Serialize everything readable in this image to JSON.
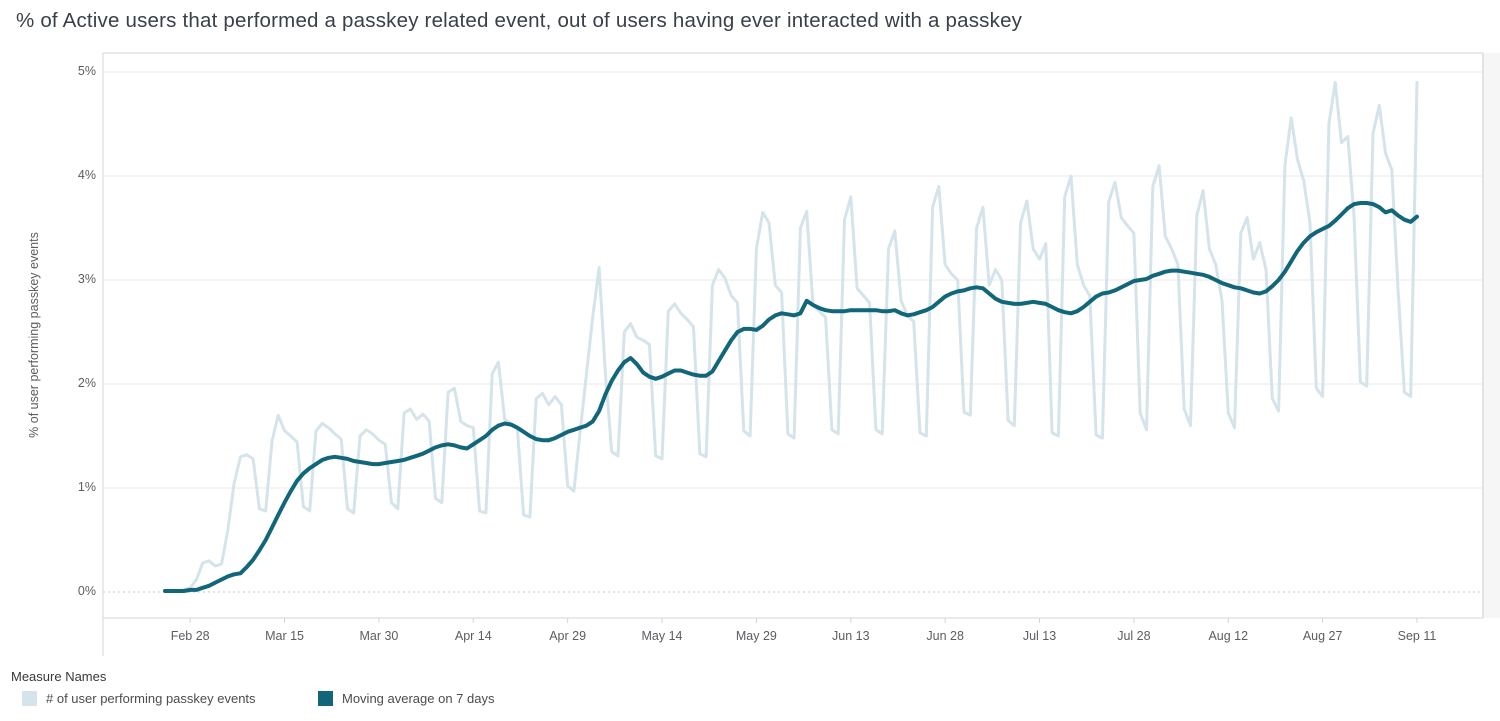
{
  "title": "% of Active users that performed a passkey related event, out of users having ever interacted with a passkey",
  "legend": {
    "title": "Measure Names",
    "items": [
      {
        "label": "# of user performing passkey events",
        "color": "#d5e3eb"
      },
      {
        "label": "Moving average on 7 days",
        "color": "#116779"
      }
    ]
  },
  "chart_data": {
    "type": "line",
    "title": "% of Active users that performed a passkey related event, out of users having ever interacted with a passkey",
    "xlabel": "",
    "ylabel": "% of user performing passkey events",
    "ylim": [
      0,
      5.2
    ],
    "y_ticks": [
      "0%",
      "1%",
      "2%",
      "3%",
      "4%",
      "5%"
    ],
    "grid": "horizontal",
    "zero_line_style": "dotted",
    "legend_position": "bottom-left",
    "x_frequency": "daily",
    "x_start_date": "Feb 24",
    "x_end_date": "Sep 11",
    "x_tick_labels": [
      "Feb 28",
      "Mar 15",
      "Mar 30",
      "Apr 14",
      "Apr 29",
      "May 14",
      "May 29",
      "Jun 13",
      "Jun 28",
      "Jul 13",
      "Jul 28",
      "Aug 12",
      "Aug 27",
      "Sep 11"
    ],
    "x_tick_indices": [
      4,
      19,
      34,
      49,
      64,
      79,
      94,
      109,
      124,
      139,
      154,
      169,
      184,
      199
    ],
    "series": [
      {
        "name": "# of user performing passkey events",
        "color": "#d5e3eb",
        "width": 3,
        "values": [
          0.01,
          0.01,
          0.01,
          0.02,
          0.04,
          0.12,
          0.28,
          0.3,
          0.25,
          0.27,
          0.6,
          1.05,
          1.3,
          1.32,
          1.28,
          0.8,
          0.78,
          1.45,
          1.7,
          1.55,
          1.5,
          1.44,
          0.82,
          0.78,
          1.55,
          1.62,
          1.58,
          1.52,
          1.47,
          0.8,
          0.76,
          1.5,
          1.56,
          1.52,
          1.46,
          1.42,
          0.86,
          0.8,
          1.72,
          1.76,
          1.66,
          1.71,
          1.64,
          0.9,
          0.86,
          1.92,
          1.96,
          1.64,
          1.6,
          1.58,
          0.78,
          0.76,
          2.1,
          2.21,
          1.66,
          1.62,
          1.58,
          0.74,
          0.72,
          1.86,
          1.91,
          1.8,
          1.88,
          1.8,
          1.02,
          0.97,
          1.55,
          2.1,
          2.65,
          3.12,
          2.1,
          1.35,
          1.31,
          2.5,
          2.58,
          2.45,
          2.42,
          2.38,
          1.31,
          1.28,
          2.7,
          2.77,
          2.68,
          2.62,
          2.55,
          1.33,
          1.3,
          2.95,
          3.1,
          3.02,
          2.85,
          2.78,
          1.55,
          1.5,
          3.3,
          3.65,
          3.55,
          2.95,
          2.88,
          1.52,
          1.48,
          3.5,
          3.66,
          2.76,
          2.7,
          2.64,
          1.56,
          1.52,
          3.58,
          3.8,
          2.92,
          2.85,
          2.78,
          1.56,
          1.52,
          3.3,
          3.47,
          2.8,
          2.66,
          2.6,
          1.53,
          1.5,
          3.7,
          3.9,
          3.15,
          3.06,
          3.0,
          1.73,
          1.7,
          3.5,
          3.7,
          2.95,
          3.1,
          3.0,
          1.65,
          1.6,
          3.55,
          3.76,
          3.3,
          3.2,
          3.35,
          1.53,
          1.5,
          3.8,
          4.0,
          3.15,
          2.95,
          2.85,
          1.51,
          1.48,
          3.75,
          3.94,
          3.6,
          3.52,
          3.45,
          1.72,
          1.56,
          3.9,
          4.1,
          3.42,
          3.3,
          3.15,
          1.76,
          1.6,
          3.62,
          3.86,
          3.3,
          3.15,
          2.8,
          1.72,
          1.58,
          3.45,
          3.6,
          3.2,
          3.36,
          3.1,
          1.86,
          1.74,
          4.1,
          4.56,
          4.16,
          3.95,
          3.55,
          1.96,
          1.88,
          4.5,
          4.9,
          4.32,
          4.38,
          3.6,
          2.02,
          1.98,
          4.41,
          4.68,
          4.22,
          4.06,
          2.9,
          1.92,
          1.88,
          4.9
        ]
      },
      {
        "name": "Moving average on 7 days",
        "color": "#116779",
        "width": 4,
        "values": [
          0.01,
          0.01,
          0.01,
          0.01,
          0.02,
          0.02,
          0.04,
          0.06,
          0.09,
          0.12,
          0.15,
          0.17,
          0.18,
          0.24,
          0.31,
          0.4,
          0.5,
          0.62,
          0.74,
          0.86,
          0.97,
          1.07,
          1.14,
          1.19,
          1.23,
          1.27,
          1.29,
          1.3,
          1.29,
          1.28,
          1.26,
          1.25,
          1.24,
          1.23,
          1.23,
          1.24,
          1.25,
          1.26,
          1.27,
          1.29,
          1.31,
          1.33,
          1.36,
          1.39,
          1.41,
          1.42,
          1.41,
          1.39,
          1.38,
          1.42,
          1.46,
          1.5,
          1.56,
          1.6,
          1.62,
          1.61,
          1.58,
          1.54,
          1.5,
          1.47,
          1.46,
          1.46,
          1.48,
          1.51,
          1.54,
          1.56,
          1.58,
          1.6,
          1.64,
          1.74,
          1.9,
          2.03,
          2.13,
          2.21,
          2.25,
          2.19,
          2.11,
          2.07,
          2.05,
          2.07,
          2.1,
          2.13,
          2.13,
          2.11,
          2.09,
          2.08,
          2.08,
          2.12,
          2.22,
          2.32,
          2.42,
          2.5,
          2.53,
          2.53,
          2.52,
          2.56,
          2.62,
          2.66,
          2.68,
          2.67,
          2.66,
          2.68,
          2.8,
          2.76,
          2.73,
          2.71,
          2.7,
          2.7,
          2.7,
          2.71,
          2.71,
          2.71,
          2.71,
          2.71,
          2.7,
          2.7,
          2.71,
          2.68,
          2.66,
          2.67,
          2.69,
          2.71,
          2.74,
          2.79,
          2.84,
          2.87,
          2.89,
          2.9,
          2.92,
          2.93,
          2.92,
          2.87,
          2.82,
          2.79,
          2.78,
          2.77,
          2.77,
          2.78,
          2.79,
          2.78,
          2.77,
          2.74,
          2.71,
          2.69,
          2.68,
          2.7,
          2.74,
          2.79,
          2.84,
          2.87,
          2.88,
          2.9,
          2.93,
          2.96,
          2.99,
          3.0,
          3.01,
          3.04,
          3.06,
          3.08,
          3.09,
          3.09,
          3.08,
          3.07,
          3.06,
          3.05,
          3.03,
          3.0,
          2.97,
          2.95,
          2.93,
          2.92,
          2.9,
          2.88,
          2.87,
          2.89,
          2.94,
          3.0,
          3.08,
          3.18,
          3.28,
          3.36,
          3.42,
          3.46,
          3.49,
          3.52,
          3.57,
          3.63,
          3.69,
          3.73,
          3.74,
          3.74,
          3.73,
          3.7,
          3.65,
          3.67,
          3.62,
          3.58,
          3.56,
          3.61
        ]
      }
    ]
  }
}
